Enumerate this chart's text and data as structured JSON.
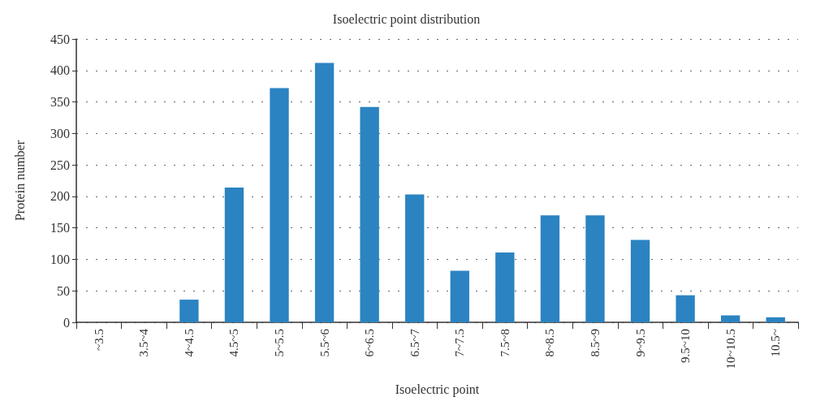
{
  "chart_data": {
    "type": "bar",
    "title": "Isoelectric point distribution",
    "xlabel": "Isoelectric point",
    "ylabel": "Protein number",
    "categories": [
      "~3.5",
      "3.5~4",
      "4~4.5",
      "4.5~5",
      "5~5.5",
      "5.5~6",
      "6~6.5",
      "6.5~7",
      "7~7.5",
      "7.5~8",
      "8~8.5",
      "8.5~9",
      "9~9.5",
      "9.5~10",
      "10~10.5",
      "10.5~"
    ],
    "values": [
      0,
      0,
      36,
      214,
      372,
      412,
      342,
      203,
      82,
      111,
      170,
      170,
      131,
      43,
      11,
      8
    ],
    "color": "#2b83c1",
    "ylim": [
      0,
      450
    ],
    "yticks": [
      0,
      50,
      100,
      150,
      200,
      250,
      300,
      350,
      400,
      450
    ],
    "grid": "y"
  }
}
